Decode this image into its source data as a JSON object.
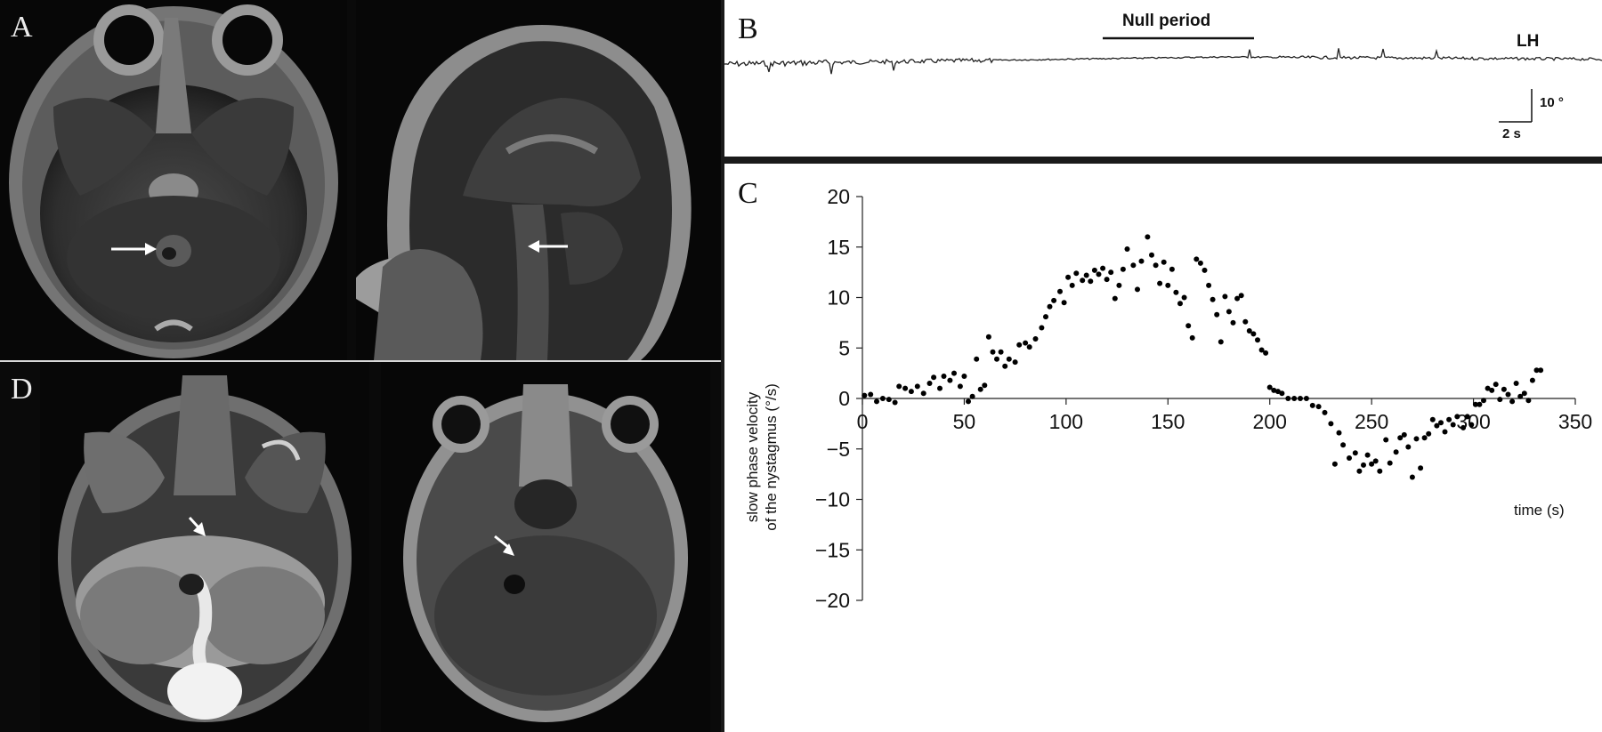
{
  "figure": {
    "panel_a": {
      "label": "A"
    },
    "panel_b": {
      "label": "B",
      "null_period_label": "Null period",
      "trace_label": "LH",
      "scale_vertical": "10 °",
      "scale_horizontal": "2 s"
    },
    "panel_c": {
      "label": "C"
    },
    "panel_d": {
      "label": "D"
    }
  },
  "chart_data": {
    "type": "scatter",
    "title": "",
    "xlabel": "time (s)",
    "ylabel": "slow phase velocity of the nystagmus (°/s)",
    "ylabel_lines": [
      "slow phase velocity",
      "of the nystagmus (°/s)"
    ],
    "xlim": [
      0,
      350
    ],
    "ylim": [
      -20,
      20
    ],
    "x_ticks": [
      0,
      50,
      100,
      150,
      200,
      250,
      300,
      350
    ],
    "y_ticks": [
      20,
      15,
      10,
      5,
      0,
      -5,
      -10,
      -15,
      -20
    ],
    "y_tick_labels": [
      "20",
      "15",
      "10",
      "5",
      "0",
      "−5",
      "−10",
      "−15",
      "−20"
    ],
    "grid": false,
    "series": [
      {
        "color": "#000000",
        "points": [
          [
            1,
            0.3
          ],
          [
            4,
            0.4
          ],
          [
            7,
            -0.3
          ],
          [
            10,
            0
          ],
          [
            13,
            -0.1
          ],
          [
            16,
            -0.4
          ],
          [
            18,
            1.2
          ],
          [
            21,
            1
          ],
          [
            24,
            0.7
          ],
          [
            27,
            1.2
          ],
          [
            30,
            0.5
          ],
          [
            33,
            1.5
          ],
          [
            35,
            2.1
          ],
          [
            38,
            1
          ],
          [
            40,
            2.2
          ],
          [
            43,
            1.8
          ],
          [
            45,
            2.5
          ],
          [
            48,
            1.2
          ],
          [
            50,
            2.2
          ],
          [
            52,
            -0.3
          ],
          [
            54,
            0.2
          ],
          [
            56,
            3.9
          ],
          [
            58,
            0.9
          ],
          [
            60,
            1.3
          ],
          [
            62,
            6.1
          ],
          [
            64,
            4.6
          ],
          [
            66,
            3.9
          ],
          [
            68,
            4.6
          ],
          [
            70,
            3.2
          ],
          [
            72,
            3.9
          ],
          [
            75,
            3.6
          ],
          [
            77,
            5.3
          ],
          [
            80,
            5.5
          ],
          [
            82,
            5.1
          ],
          [
            85,
            5.9
          ],
          [
            88,
            7
          ],
          [
            90,
            8.1
          ],
          [
            92,
            9.1
          ],
          [
            94,
            9.7
          ],
          [
            97,
            10.6
          ],
          [
            99,
            9.5
          ],
          [
            101,
            12
          ],
          [
            103,
            11.2
          ],
          [
            105,
            12.4
          ],
          [
            108,
            11.7
          ],
          [
            110,
            12.2
          ],
          [
            112,
            11.6
          ],
          [
            114,
            12.7
          ],
          [
            116,
            12.3
          ],
          [
            118,
            12.9
          ],
          [
            120,
            11.8
          ],
          [
            122,
            12.5
          ],
          [
            124,
            9.9
          ],
          [
            126,
            11.2
          ],
          [
            128,
            12.8
          ],
          [
            130,
            14.8
          ],
          [
            133,
            13.2
          ],
          [
            135,
            10.8
          ],
          [
            137,
            13.6
          ],
          [
            140,
            16
          ],
          [
            142,
            14.2
          ],
          [
            144,
            13.2
          ],
          [
            146,
            11.4
          ],
          [
            148,
            13.5
          ],
          [
            150,
            11.2
          ],
          [
            152,
            12.8
          ],
          [
            154,
            10.5
          ],
          [
            156,
            9.4
          ],
          [
            158,
            10
          ],
          [
            160,
            7.2
          ],
          [
            162,
            6
          ],
          [
            164,
            13.8
          ],
          [
            166,
            13.4
          ],
          [
            168,
            12.7
          ],
          [
            170,
            11.2
          ],
          [
            172,
            9.8
          ],
          [
            174,
            8.3
          ],
          [
            176,
            5.6
          ],
          [
            178,
            10.1
          ],
          [
            180,
            8.6
          ],
          [
            182,
            7.5
          ],
          [
            184,
            9.9
          ],
          [
            186,
            10.2
          ],
          [
            188,
            7.6
          ],
          [
            190,
            6.7
          ],
          [
            192,
            6.4
          ],
          [
            194,
            5.8
          ],
          [
            196,
            4.8
          ],
          [
            198,
            4.5
          ],
          [
            200,
            1.1
          ],
          [
            202,
            0.8
          ],
          [
            204,
            0.7
          ],
          [
            206,
            0.5
          ],
          [
            209,
            0
          ],
          [
            212,
            0
          ],
          [
            215,
            0
          ],
          [
            218,
            0
          ],
          [
            221,
            -0.7
          ],
          [
            224,
            -0.8
          ],
          [
            227,
            -1.4
          ],
          [
            230,
            -2.5
          ],
          [
            232,
            -6.5
          ],
          [
            234,
            -3.4
          ],
          [
            236,
            -4.6
          ],
          [
            239,
            -5.9
          ],
          [
            242,
            -5.4
          ],
          [
            244,
            -7.2
          ],
          [
            246,
            -6.6
          ],
          [
            248,
            -5.6
          ],
          [
            250,
            -6.5
          ],
          [
            252,
            -6.2
          ],
          [
            254,
            -7.2
          ],
          [
            257,
            -4.1
          ],
          [
            259,
            -6.4
          ],
          [
            262,
            -5.3
          ],
          [
            264,
            -3.9
          ],
          [
            266,
            -3.6
          ],
          [
            268,
            -4.8
          ],
          [
            270,
            -7.8
          ],
          [
            272,
            -4
          ],
          [
            274,
            -6.9
          ],
          [
            276,
            -3.9
          ],
          [
            278,
            -3.5
          ],
          [
            280,
            -2.1
          ],
          [
            282,
            -2.7
          ],
          [
            284,
            -2.4
          ],
          [
            286,
            -3.3
          ],
          [
            288,
            -2.1
          ],
          [
            290,
            -2.6
          ],
          [
            292,
            -1.8
          ],
          [
            295,
            -2.9
          ],
          [
            297,
            -1.8
          ],
          [
            299,
            -2.6
          ],
          [
            301,
            -0.6
          ],
          [
            303,
            -0.6
          ],
          [
            305,
            -0.2
          ],
          [
            307,
            1
          ],
          [
            309,
            0.8
          ],
          [
            311,
            1.4
          ],
          [
            313,
            -0.1
          ],
          [
            315,
            0.9
          ],
          [
            317,
            0.4
          ],
          [
            319,
            -0.3
          ],
          [
            321,
            1.5
          ],
          [
            323,
            0.2
          ],
          [
            325,
            0.5
          ],
          [
            327,
            -0.2
          ],
          [
            329,
            1.8
          ],
          [
            331,
            2.8
          ],
          [
            333,
            2.8
          ]
        ]
      }
    ]
  }
}
